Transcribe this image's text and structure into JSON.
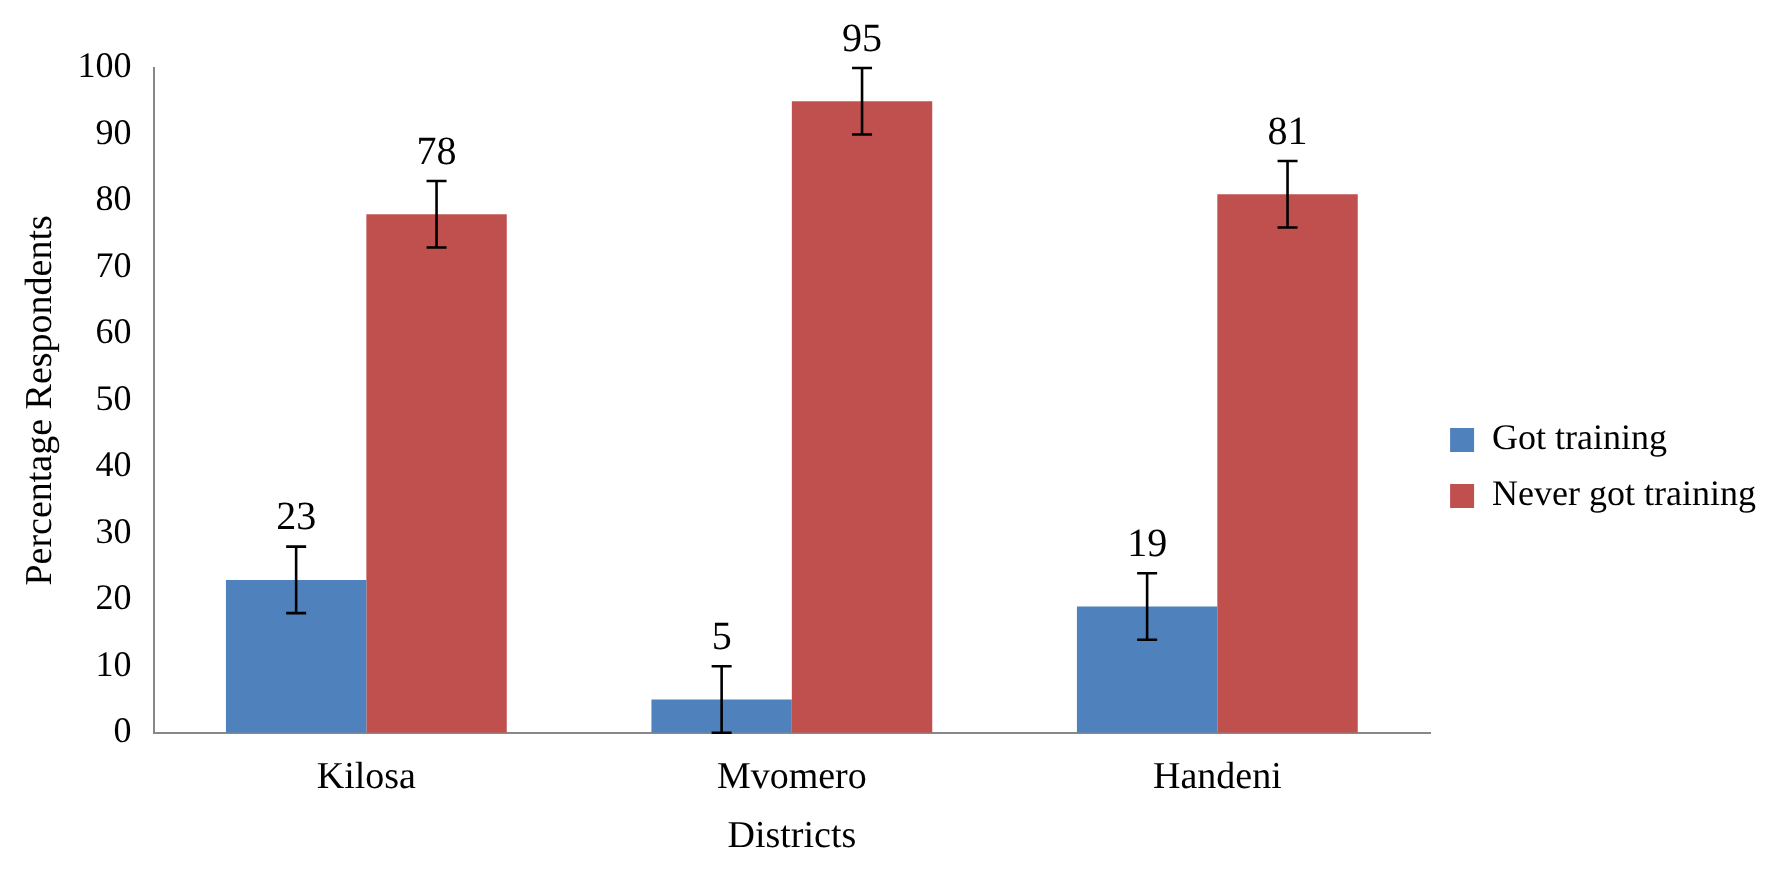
{
  "chart_data": {
    "type": "bar",
    "xlabel": "Districts",
    "ylabel": "Percentage Respondents",
    "categories": [
      "Kilosa",
      "Mvomero",
      "Handeni"
    ],
    "series": [
      {
        "name": "Got training",
        "color": "#4f81bd",
        "values": [
          23,
          5,
          19
        ],
        "errors": [
          5,
          5,
          5
        ]
      },
      {
        "name": "Never got training",
        "color": "#c0504d",
        "values": [
          78,
          95,
          81
        ],
        "errors": [
          5,
          5,
          5
        ]
      }
    ],
    "ylim": [
      0,
      100
    ],
    "yticks": [
      0,
      10,
      20,
      30,
      40,
      50,
      60,
      70,
      80,
      90,
      100
    ],
    "grid": false,
    "legend": "right",
    "data_labels": true
  }
}
